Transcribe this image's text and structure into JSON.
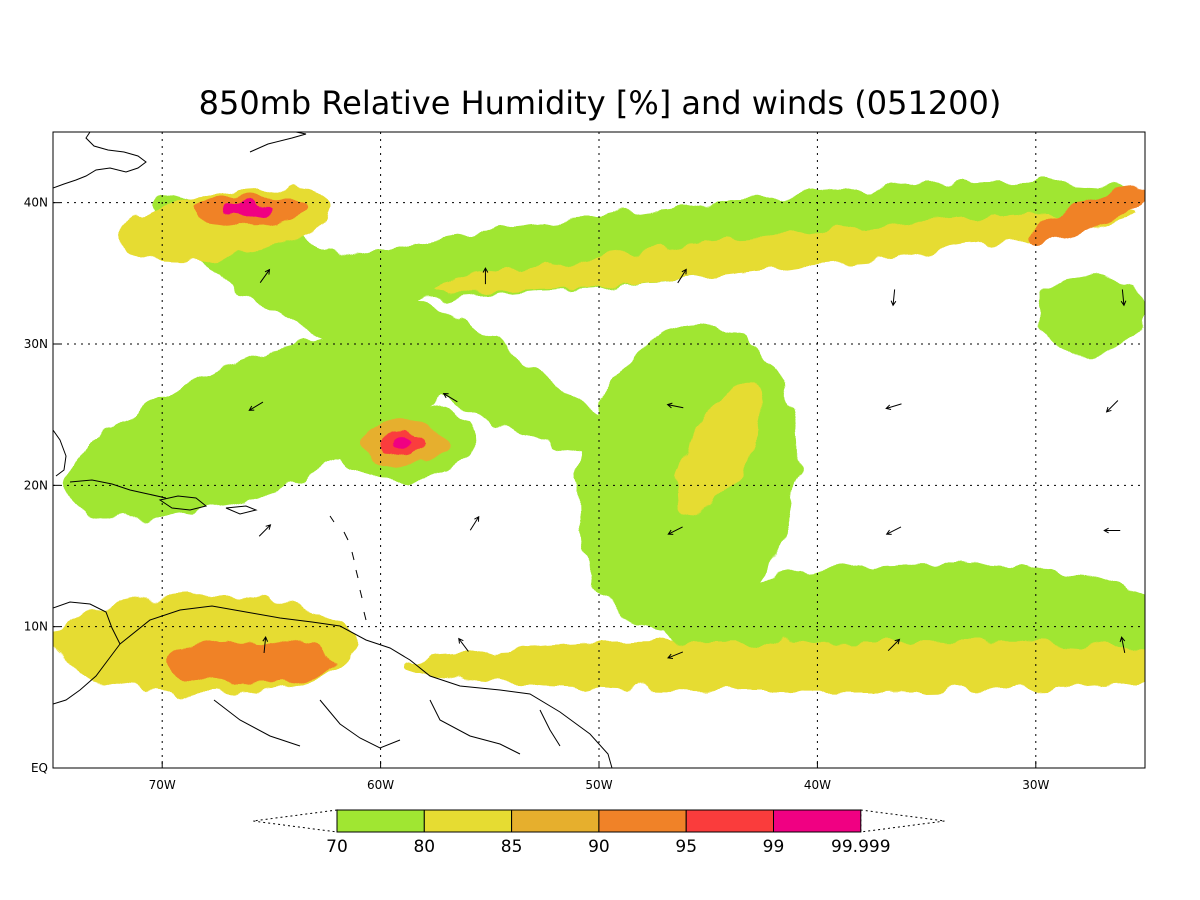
{
  "title": "850mb Relative Humidity [%] and winds (051200)",
  "map": {
    "lon_range": [
      -75,
      -25
    ],
    "lat_range": [
      0,
      45
    ],
    "lon_ticks": [
      {
        "value": -70,
        "label": "70W"
      },
      {
        "value": -60,
        "label": "60W"
      },
      {
        "value": -50,
        "label": "50W"
      },
      {
        "value": -40,
        "label": "40W"
      },
      {
        "value": -30,
        "label": "30W"
      }
    ],
    "lat_ticks": [
      {
        "value": 0,
        "label": "EQ"
      },
      {
        "value": 10,
        "label": "10N"
      },
      {
        "value": 20,
        "label": "20N"
      },
      {
        "value": 30,
        "label": "30N"
      },
      {
        "value": 40,
        "label": "40N"
      }
    ],
    "grid": true
  },
  "colorbar": {
    "levels": [
      "70",
      "80",
      "85",
      "90",
      "95",
      "99",
      "99.999"
    ],
    "colors": [
      "#a0e632",
      "#e6dc32",
      "#e6af2d",
      "#f08228",
      "#fa3c3c",
      "#f00082"
    ]
  },
  "humidity_fields": [
    {
      "lon": -65.5,
      "lat": 24.3,
      "rx": 9.5,
      "ry": 4.6,
      "level": 0,
      "rot": -20
    },
    {
      "lon": -45.5,
      "lat": 37.3,
      "rx": 20,
      "ry": 2.6,
      "level": 0,
      "rot": -6
    },
    {
      "lon": -60,
      "lat": 31.5,
      "rx": 12,
      "ry": 3.0,
      "level": 0,
      "rot": 28
    },
    {
      "lon": -41.5,
      "lat": 36.5,
      "rx": 16,
      "ry": 1.2,
      "level": 1,
      "rot": -6
    },
    {
      "lon": -27.5,
      "lat": 39.2,
      "rx": 3,
      "ry": 1.0,
      "level": 3,
      "rot": -20
    },
    {
      "lon": -27.5,
      "lat": 32.0,
      "rx": 2.5,
      "ry": 2.8,
      "level": 0,
      "rot": 0
    },
    {
      "lon": -67,
      "lat": 38.5,
      "rx": 5,
      "ry": 2.3,
      "level": 1,
      "rot": -10
    },
    {
      "lon": -66,
      "lat": 39.5,
      "rx": 2.5,
      "ry": 1.1,
      "level": 3,
      "rot": 0
    },
    {
      "lon": -46,
      "lat": 20.5,
      "rx": 5,
      "ry": 11,
      "level": 0,
      "rot": 12
    },
    {
      "lon": -35,
      "lat": 10,
      "rx": 12,
      "ry": 4.5,
      "level": 0,
      "rot": 0
    },
    {
      "lon": -40,
      "lat": 7.2,
      "rx": 19,
      "ry": 1.8,
      "level": 1,
      "rot": 0
    },
    {
      "lon": -68,
      "lat": 8.8,
      "rx": 7,
      "ry": 3.5,
      "level": 1,
      "rot": 0
    },
    {
      "lon": -66,
      "lat": 7.5,
      "rx": 4,
      "ry": 1.5,
      "level": 3,
      "rot": 0
    },
    {
      "lon": -44.5,
      "lat": 22.5,
      "rx": 1.3,
      "ry": 5.2,
      "level": 1,
      "rot": 28
    },
    {
      "lon": -59,
      "lat": 23,
      "rx": 3.2,
      "ry": 2.7,
      "level": 0,
      "rot": 0
    },
    {
      "lon": -59,
      "lat": 23,
      "rx": 1.9,
      "ry": 1.5,
      "level": 2,
      "rot": 0
    },
    {
      "lon": -59,
      "lat": 23,
      "rx": 1.1,
      "ry": 0.9,
      "level": 4,
      "rot": 0
    },
    {
      "lon": -59,
      "lat": 23,
      "rx": 0.6,
      "ry": 0.45,
      "level": 5,
      "rot": 0
    },
    {
      "lon": -66,
      "lat": 39.6,
      "rx": 1.1,
      "ry": 0.5,
      "level": 5,
      "rot": 0
    }
  ],
  "wind_vectors": [
    {
      "lon": -65.3,
      "lat": 34.8,
      "u": 0.5,
      "v": 0.7
    },
    {
      "lon": -55.2,
      "lat": 34.8,
      "u": 0,
      "v": 1
    },
    {
      "lon": -46.2,
      "lat": 34.8,
      "u": 0.5,
      "v": 0.8
    },
    {
      "lon": -36.5,
      "lat": 33.3,
      "u": -0.1,
      "v": -1
    },
    {
      "lon": -26,
      "lat": 33.3,
      "u": 0.1,
      "v": -1
    },
    {
      "lon": -65.7,
      "lat": 25.6,
      "u": -1,
      "v": -0.6
    },
    {
      "lon": -56.8,
      "lat": 26.2,
      "u": -1,
      "v": 0.6
    },
    {
      "lon": -46.5,
      "lat": 25.6,
      "u": -1,
      "v": 0.2
    },
    {
      "lon": -36.5,
      "lat": 25.6,
      "u": -1,
      "v": -0.3
    },
    {
      "lon": -26.5,
      "lat": 25.6,
      "u": -0.8,
      "v": -0.8
    },
    {
      "lon": -65.3,
      "lat": 16.8,
      "u": 0.6,
      "v": 0.6
    },
    {
      "lon": -55.7,
      "lat": 17.3,
      "u": 0.5,
      "v": 0.8
    },
    {
      "lon": -46.5,
      "lat": 16.8,
      "u": -1,
      "v": -0.5
    },
    {
      "lon": -36.5,
      "lat": 16.8,
      "u": -1,
      "v": -0.5
    },
    {
      "lon": -26.5,
      "lat": 16.8,
      "u": -1,
      "v": 0
    },
    {
      "lon": -65.3,
      "lat": 8.7,
      "u": 0.1,
      "v": 1
    },
    {
      "lon": -56.2,
      "lat": 8.7,
      "u": -0.6,
      "v": 0.8
    },
    {
      "lon": -46.5,
      "lat": 8.0,
      "u": -1,
      "v": -0.4
    },
    {
      "lon": -36.5,
      "lat": 8.7,
      "u": 0.7,
      "v": 0.7
    },
    {
      "lon": -26,
      "lat": 8.7,
      "u": -0.2,
      "v": 1
    }
  ]
}
